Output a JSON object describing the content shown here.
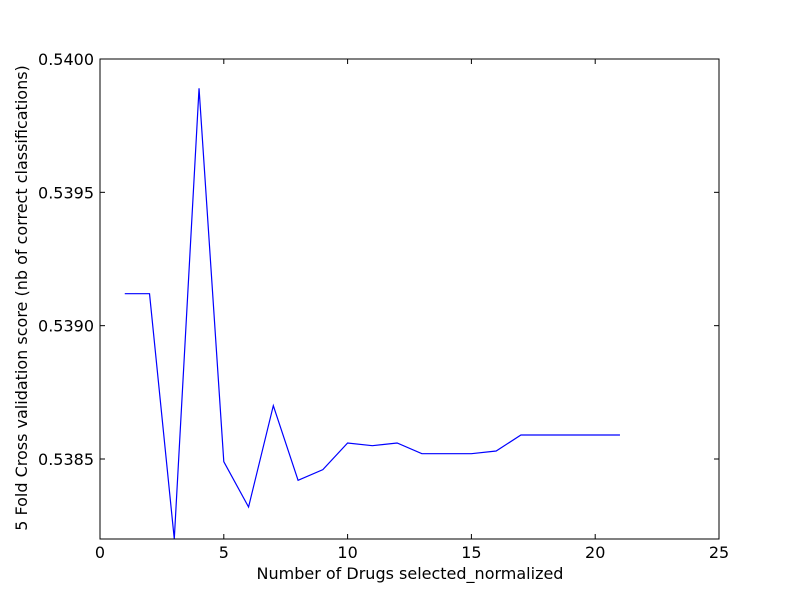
{
  "chart_data": {
    "type": "line",
    "title": "",
    "xlabel": "Number of Drugs selected_normalized",
    "ylabel": "5 Fold Cross validation score (nb of correct classifications)",
    "xlim": [
      0,
      25
    ],
    "ylim": [
      0.5382,
      0.54
    ],
    "xticks": [
      0,
      5,
      10,
      15,
      20,
      25
    ],
    "xtick_labels": [
      "0",
      "5",
      "10",
      "15",
      "20",
      "25"
    ],
    "yticks": [
      0.5385,
      0.539,
      0.5395,
      0.54
    ],
    "ytick_labels": [
      "0.5385",
      "0.5390",
      "0.5395",
      "0.5400"
    ],
    "grid": false,
    "series": [
      {
        "color": "#0000ff",
        "x": [
          1,
          2,
          3,
          4,
          5,
          6,
          7,
          8,
          9,
          10,
          11,
          12,
          13,
          14,
          15,
          16,
          17,
          18,
          19,
          20,
          21
        ],
        "values": [
          0.53912,
          0.53912,
          0.5382,
          0.53989,
          0.53849,
          0.53832,
          0.5387,
          0.53842,
          0.53846,
          0.53856,
          0.53855,
          0.53856,
          0.53852,
          0.53852,
          0.53852,
          0.53853,
          0.53859,
          0.53859,
          0.53859,
          0.53859,
          0.53859
        ]
      }
    ]
  }
}
